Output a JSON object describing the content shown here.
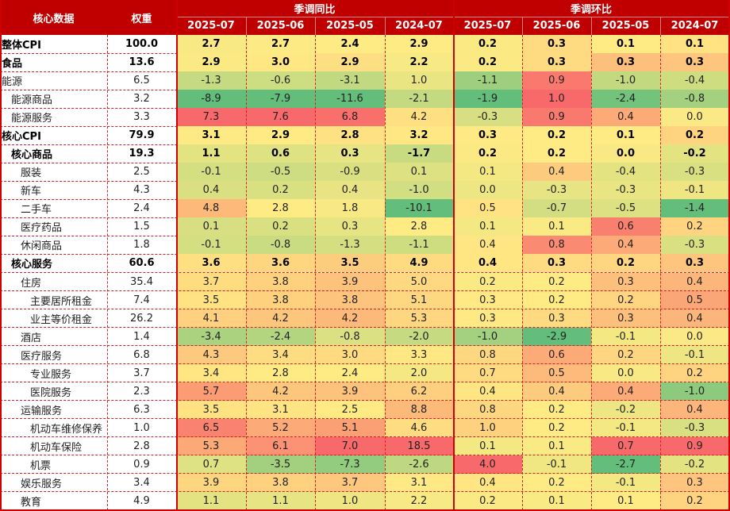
{
  "header": {
    "col_name": "核心数据",
    "col_weight": "权重",
    "group_yoy": "季调同比",
    "group_mom": "季调环比",
    "months": [
      "2025-07",
      "2025-06",
      "2025-05",
      "2024-07"
    ]
  },
  "rows": [
    {
      "name": "整体CPI",
      "indent": 0,
      "bold": true,
      "weight": "100.0",
      "yoy": [
        "2.7",
        "2.7",
        "2.4",
        "2.9"
      ],
      "mom": [
        "0.2",
        "0.3",
        "0.1",
        "0.1"
      ]
    },
    {
      "name": "食品",
      "indent": 0,
      "bold": true,
      "weight": "13.6",
      "yoy": [
        "2.9",
        "3.0",
        "2.9",
        "2.2"
      ],
      "mom": [
        "0.2",
        "0.3",
        "0.3",
        "0.3"
      ]
    },
    {
      "name": "能源",
      "indent": 0,
      "bold": false,
      "weight": "6.5",
      "yoy": [
        "-1.3",
        "-0.6",
        "-3.1",
        "1.0"
      ],
      "mom": [
        "-1.1",
        "0.9",
        "-1.0",
        "-0.4"
      ]
    },
    {
      "name": "能源商品",
      "indent": 1,
      "bold": false,
      "weight": "3.2",
      "yoy": [
        "-8.9",
        "-7.9",
        "-11.6",
        "-2.1"
      ],
      "mom": [
        "-1.9",
        "1.0",
        "-2.4",
        "-0.8"
      ]
    },
    {
      "name": "能源服务",
      "indent": 1,
      "bold": false,
      "weight": "3.3",
      "yoy": [
        "7.3",
        "7.6",
        "6.8",
        "4.2"
      ],
      "mom": [
        "-0.3",
        "0.9",
        "0.4",
        "0.0"
      ]
    },
    {
      "name": "核心CPI",
      "indent": 0,
      "bold": true,
      "weight": "79.9",
      "yoy": [
        "3.1",
        "2.9",
        "2.8",
        "3.2"
      ],
      "mom": [
        "0.3",
        "0.2",
        "0.1",
        "0.2"
      ]
    },
    {
      "name": "核心商品",
      "indent": 1,
      "bold": true,
      "weight": "19.3",
      "yoy": [
        "1.1",
        "0.6",
        "0.3",
        "-1.7"
      ],
      "mom": [
        "0.2",
        "0.2",
        "0.0",
        "-0.2"
      ]
    },
    {
      "name": "服装",
      "indent": 2,
      "bold": false,
      "weight": "2.5",
      "yoy": [
        "-0.1",
        "-0.5",
        "-0.9",
        "0.1"
      ],
      "mom": [
        "0.1",
        "0.4",
        "-0.4",
        "-0.3"
      ]
    },
    {
      "name": "新车",
      "indent": 2,
      "bold": false,
      "weight": "4.3",
      "yoy": [
        "0.4",
        "0.2",
        "0.4",
        "-1.0"
      ],
      "mom": [
        "0.0",
        "-0.3",
        "-0.3",
        "-0.1"
      ]
    },
    {
      "name": "二手车",
      "indent": 2,
      "bold": false,
      "weight": "2.4",
      "yoy": [
        "4.8",
        "2.8",
        "1.8",
        "-10.1"
      ],
      "mom": [
        "0.5",
        "-0.7",
        "-0.5",
        "-1.4"
      ]
    },
    {
      "name": "医疗药品",
      "indent": 2,
      "bold": false,
      "weight": "1.5",
      "yoy": [
        "0.1",
        "0.2",
        "0.3",
        "2.8"
      ],
      "mom": [
        "0.1",
        "0.1",
        "0.6",
        "0.2"
      ]
    },
    {
      "name": "休闲商品",
      "indent": 2,
      "bold": false,
      "weight": "1.8",
      "yoy": [
        "-0.1",
        "-0.8",
        "-1.3",
        "-1.1"
      ],
      "mom": [
        "0.4",
        "0.8",
        "0.4",
        "-0.3"
      ]
    },
    {
      "name": "核心服务",
      "indent": 1,
      "bold": true,
      "weight": "60.6",
      "yoy": [
        "3.6",
        "3.6",
        "3.5",
        "4.9"
      ],
      "mom": [
        "0.4",
        "0.3",
        "0.2",
        "0.3"
      ]
    },
    {
      "name": "住房",
      "indent": 2,
      "bold": false,
      "weight": "35.4",
      "yoy": [
        "3.7",
        "3.8",
        "3.9",
        "5.0"
      ],
      "mom": [
        "0.2",
        "0.2",
        "0.3",
        "0.4"
      ]
    },
    {
      "name": "主要居所租金",
      "indent": 3,
      "bold": false,
      "weight": "7.4",
      "yoy": [
        "3.5",
        "3.8",
        "3.8",
        "5.1"
      ],
      "mom": [
        "0.3",
        "0.2",
        "0.2",
        "0.5"
      ]
    },
    {
      "name": "业主等价租金",
      "indent": 3,
      "bold": false,
      "weight": "26.2",
      "yoy": [
        "4.1",
        "4.2",
        "4.2",
        "5.3"
      ],
      "mom": [
        "0.3",
        "0.3",
        "0.3",
        "0.4"
      ]
    },
    {
      "name": "酒店",
      "indent": 2,
      "bold": false,
      "weight": "1.4",
      "yoy": [
        "-3.4",
        "-2.4",
        "-0.8",
        "-2.0"
      ],
      "mom": [
        "-1.0",
        "-2.9",
        "-0.1",
        "0.0"
      ]
    },
    {
      "name": "医疗服务",
      "indent": 2,
      "bold": false,
      "weight": "6.8",
      "yoy": [
        "4.3",
        "3.4",
        "3.0",
        "3.3"
      ],
      "mom": [
        "0.8",
        "0.6",
        "0.2",
        "-0.1"
      ]
    },
    {
      "name": "专业服务",
      "indent": 3,
      "bold": false,
      "weight": "3.7",
      "yoy": [
        "3.4",
        "2.8",
        "2.4",
        "2.0"
      ],
      "mom": [
        "0.7",
        "0.5",
        "0.0",
        "0.2"
      ]
    },
    {
      "name": "医院服务",
      "indent": 3,
      "bold": false,
      "weight": "2.3",
      "yoy": [
        "5.7",
        "4.2",
        "3.9",
        "6.2"
      ],
      "mom": [
        "0.4",
        "0.4",
        "0.4",
        "-1.0"
      ]
    },
    {
      "name": "运输服务",
      "indent": 2,
      "bold": false,
      "weight": "6.3",
      "yoy": [
        "3.5",
        "3.1",
        "2.5",
        "8.8"
      ],
      "mom": [
        "0.8",
        "0.2",
        "-0.2",
        "0.4"
      ]
    },
    {
      "name": "机动车维修保养",
      "indent": 3,
      "bold": false,
      "weight": "1.0",
      "yoy": [
        "6.5",
        "5.2",
        "5.1",
        "4.6"
      ],
      "mom": [
        "1.0",
        "0.2",
        "-0.1",
        "-0.3"
      ]
    },
    {
      "name": "机动车保险",
      "indent": 3,
      "bold": false,
      "weight": "2.8",
      "yoy": [
        "5.3",
        "6.1",
        "7.0",
        "18.5"
      ],
      "mom": [
        "0.1",
        "0.1",
        "0.7",
        "0.9"
      ]
    },
    {
      "name": "机票",
      "indent": 3,
      "bold": false,
      "weight": "0.9",
      "yoy": [
        "0.7",
        "-3.5",
        "-7.3",
        "-2.6"
      ],
      "mom": [
        "4.0",
        "-0.1",
        "-2.7",
        "-0.2"
      ]
    },
    {
      "name": "娱乐服务",
      "indent": 2,
      "bold": false,
      "weight": "3.4",
      "yoy": [
        "3.9",
        "3.8",
        "3.7",
        "3.1"
      ],
      "mom": [
        "0.4",
        "0.2",
        "-0.1",
        "0.3"
      ]
    },
    {
      "name": "教育",
      "indent": 2,
      "bold": false,
      "weight": "4.9",
      "yoy": [
        "1.1",
        "1.1",
        "1.0",
        "2.2"
      ],
      "mom": [
        "0.2",
        "0.1",
        "0.1",
        "0.2"
      ]
    }
  ],
  "colors": {
    "header_bg": "#c00000",
    "header_text": "#ffffff",
    "grid": "#d42020",
    "low": "#63be7b",
    "mid": "#ffeb84",
    "high": "#f8696b"
  }
}
